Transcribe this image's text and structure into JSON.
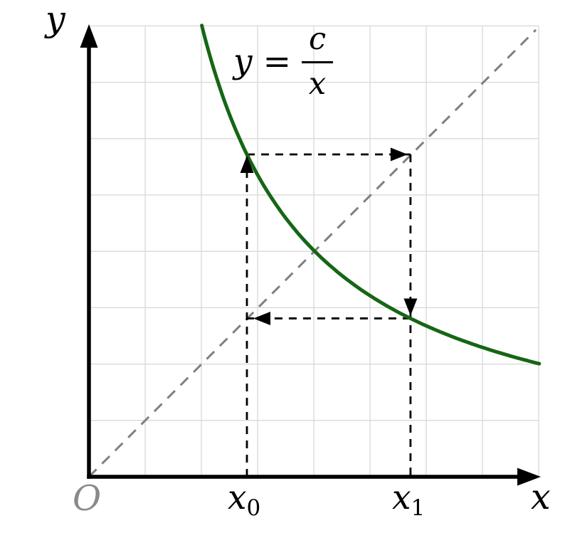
{
  "figure": {
    "labels": {
      "y_axis": "y",
      "x_axis": "x",
      "origin": "O",
      "x0": {
        "base": "x",
        "sub": "0"
      },
      "x1": {
        "base": "x",
        "sub": "1"
      }
    },
    "formula": {
      "lhs": "y",
      "eq": "=",
      "num": "c",
      "den": "x"
    },
    "colors": {
      "curve": "#156615",
      "grid": "#d8d8d8",
      "identity_line": "#808080",
      "cobweb": "#000000",
      "axis": "#000000",
      "origin_label": "#8a8a8a",
      "background": "#ffffff"
    }
  },
  "chart_data": {
    "type": "line",
    "title": "y = c/x",
    "description": "Cobweb diagram of the iteration x(n+1) = c / x(n) on the hyperbola y = c/x with the identity line y = x; dashed arrows trace the 2-cycle between x0 and x1 (x0 * x1 = c). Axes are unlabeled; units are grid cells.",
    "xlabel": "x",
    "ylabel": "y",
    "grid": {
      "cells_x": 8,
      "cells_y": 8,
      "visible": true
    },
    "xlim": [
      0,
      8.6
    ],
    "ylim": [
      0,
      8.6
    ],
    "curve": {
      "equation": "y = c/x",
      "c": 16.07,
      "x_domain": [
        2.007,
        8.01
      ],
      "color": "#156615"
    },
    "identity_line": {
      "equation": "y = x",
      "from": [
        0,
        0
      ],
      "to": [
        7.95,
        7.93
      ],
      "style": "dashed",
      "color": "#808080"
    },
    "cobweb": {
      "x0": 2.81,
      "x1": 5.72,
      "segments": [
        {
          "from": [
            2.81,
            0
          ],
          "to": [
            2.81,
            5.72
          ]
        },
        {
          "from": [
            2.81,
            5.72
          ],
          "to": [
            5.72,
            5.72
          ]
        },
        {
          "from": [
            5.72,
            5.72
          ],
          "to": [
            5.72,
            0
          ]
        },
        {
          "from": [
            5.72,
            2.81
          ],
          "to": [
            2.81,
            2.81
          ]
        }
      ],
      "arrows": [
        {
          "tip": [
            2.81,
            5.72
          ],
          "dir": "up",
          "offset": 2
        },
        {
          "tip": [
            5.72,
            5.72
          ],
          "dir": "right",
          "offset": 4
        },
        {
          "tip": [
            5.72,
            2.81
          ],
          "dir": "down",
          "offset": 4
        },
        {
          "tip": [
            2.81,
            2.81
          ],
          "dir": "left",
          "offset": 9
        }
      ]
    }
  }
}
